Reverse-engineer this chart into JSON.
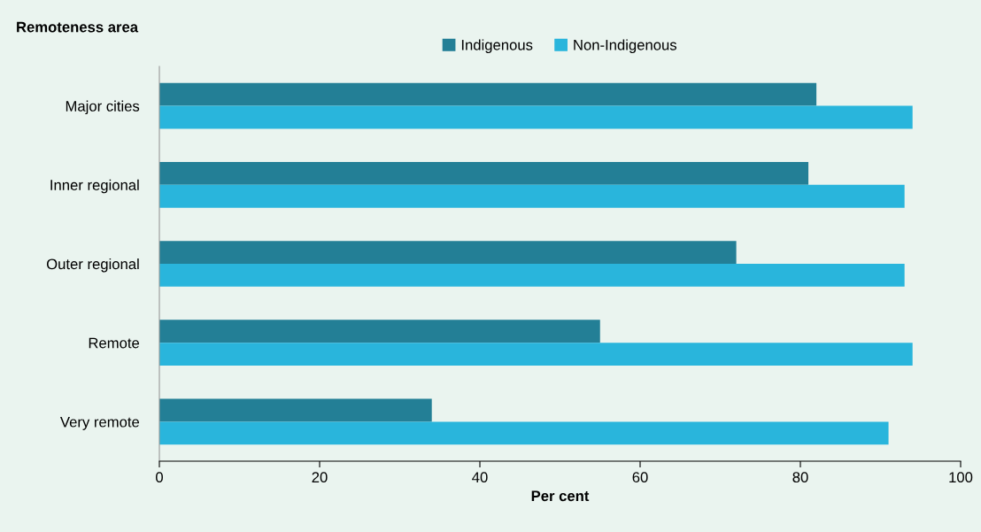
{
  "chart_data": {
    "type": "bar",
    "orientation": "horizontal",
    "ylabel": "Remoteness area",
    "xlabel": "Per cent",
    "categories": [
      "Major cities",
      "Inner regional",
      "Outer regional",
      "Remote",
      "Very remote"
    ],
    "series": [
      {
        "name": "Indigenous",
        "color": "#237f96",
        "values": [
          82,
          81,
          72,
          55,
          34
        ]
      },
      {
        "name": "Non-Indigenous",
        "color": "#29b5dc",
        "values": [
          94,
          93,
          93,
          94,
          91
        ]
      }
    ],
    "xlim": [
      0,
      100
    ],
    "xticks": [
      0,
      20,
      40,
      60,
      80,
      100
    ],
    "grid": false,
    "legend": "top"
  }
}
